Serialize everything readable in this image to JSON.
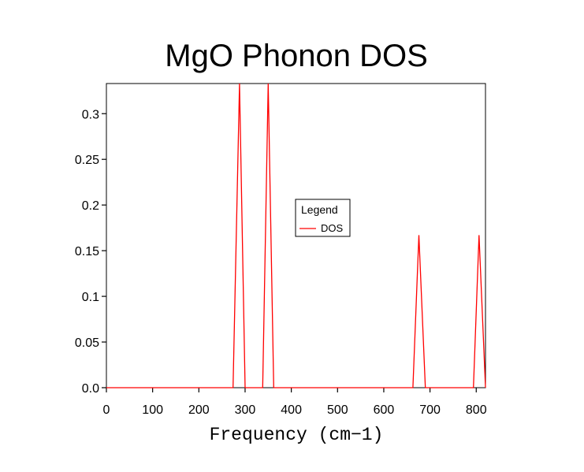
{
  "chart_data": {
    "type": "line",
    "title": "MgO Phonon DOS",
    "xlabel": "Frequency (cm−1)",
    "ylabel": "",
    "xlim": [
      0,
      820
    ],
    "ylim": [
      0,
      0.333
    ],
    "xticks": [
      0,
      100,
      200,
      300,
      400,
      500,
      600,
      700,
      800
    ],
    "xtick_labels": [
      "0",
      "100",
      "200",
      "300",
      "400",
      "500",
      "600",
      "700",
      "800"
    ],
    "yticks": [
      0,
      0.05,
      0.1,
      0.15,
      0.2,
      0.25,
      0.3
    ],
    "ytick_labels": [
      "0.0",
      "0.05",
      "0.1",
      "0.15",
      "0.2",
      "0.25",
      "0.3"
    ],
    "grid": false,
    "legend": {
      "title": "Legend",
      "placement": "center"
    },
    "series": [
      {
        "name": "DOS",
        "color": "#ff0000",
        "x": [
          0,
          274,
          288,
          300,
          338,
          350,
          362,
          663,
          676,
          690,
          794,
          806,
          820
        ],
        "y": [
          0,
          0,
          0.333,
          0,
          0,
          0.333,
          0,
          0,
          0.167,
          0,
          0,
          0.167,
          0
        ]
      }
    ]
  }
}
